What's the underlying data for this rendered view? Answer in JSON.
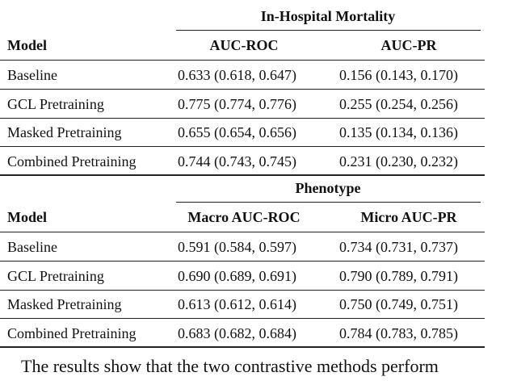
{
  "sections": [
    {
      "group_header": "In-Hospital Mortality",
      "columns": [
        "Model",
        "AUC-ROC",
        "AUC-PR"
      ],
      "rows": [
        [
          "Baseline",
          "0.633 (0.618, 0.647)",
          "0.156 (0.143, 0.170)"
        ],
        [
          "GCL Pretraining",
          "0.775 (0.774, 0.776)",
          "0.255 (0.254, 0.256)"
        ],
        [
          "Masked Pretraining",
          "0.655 (0.654, 0.656)",
          "0.135 (0.134, 0.136)"
        ],
        [
          "Combined Pretraining",
          "0.744 (0.743, 0.745)",
          "0.231 (0.230, 0.232)"
        ]
      ]
    },
    {
      "group_header": "Phenotype",
      "columns": [
        "Model",
        "Macro AUC-ROC",
        "Micro AUC-PR"
      ],
      "rows": [
        [
          "Baseline",
          "0.591 (0.584, 0.597)",
          "0.734 (0.731, 0.737)"
        ],
        [
          "GCL Pretraining",
          "0.690 (0.689, 0.691)",
          "0.790 (0.789, 0.791)"
        ],
        [
          "Masked Pretraining",
          "0.613 (0.612, 0.614)",
          "0.750 (0.749, 0.751)"
        ],
        [
          "Combined Pretraining",
          "0.683 (0.682, 0.684)",
          "0.784 (0.783, 0.785)"
        ]
      ]
    }
  ],
  "paragraph": "The results show that the two contrastive methods perform"
}
